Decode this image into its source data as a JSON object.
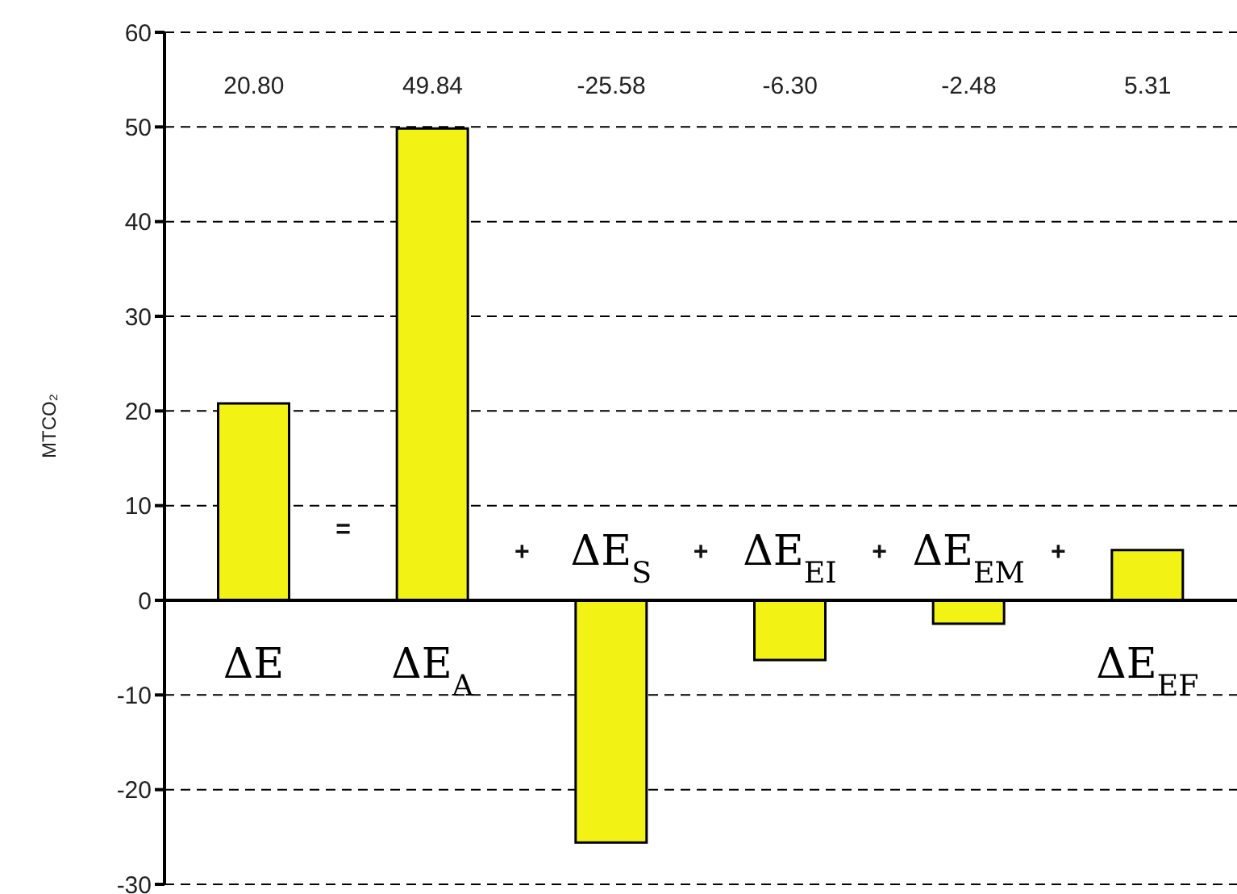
{
  "chart_data": {
    "type": "bar",
    "ylabel": "MTCO₂",
    "categories": [
      "ΔE",
      "ΔE$_{A}$",
      "ΔE$_{S}$",
      "ΔE$_{EI}$",
      "ΔE$_{EM}$",
      "ΔE$_{EF}$"
    ],
    "values": [
      20.8,
      49.84,
      -25.58,
      -6.3,
      -2.48,
      5.31
    ],
    "color": "#f2f215",
    "ylim": [
      -30,
      60
    ],
    "yticks": [
      -30,
      -20,
      -10,
      0,
      10,
      20,
      30,
      40,
      50,
      60
    ],
    "grid": "y",
    "annotations": [
      "=",
      "+",
      "+",
      "+",
      "+",
      "20.80",
      "49.84",
      "-25.58",
      "-6.30",
      "-2.48",
      "5.31"
    ]
  }
}
